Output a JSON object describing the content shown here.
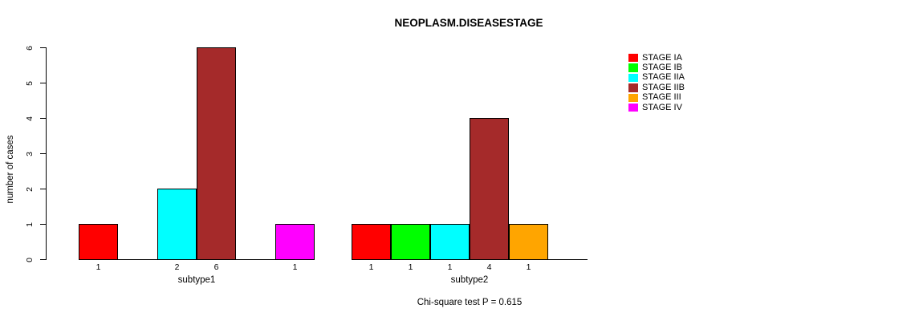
{
  "chart_data": {
    "type": "bar",
    "title": "NEOPLASM.DISEASESTAGE",
    "ylabel": "number of cases",
    "xlabel": "",
    "ylim": [
      0,
      6
    ],
    "yticks": [
      0,
      1,
      2,
      3,
      4,
      5,
      6
    ],
    "categories": [
      "subtype1",
      "subtype2"
    ],
    "series": [
      {
        "name": "STAGE IA",
        "color": "#FF0000",
        "values": [
          1,
          1
        ]
      },
      {
        "name": "STAGE IB",
        "color": "#00FF00",
        "values": [
          0,
          1
        ]
      },
      {
        "name": "STAGE IIA",
        "color": "#00FFFF",
        "values": [
          2,
          1
        ]
      },
      {
        "name": "STAGE IIB",
        "color": "#A52A2A",
        "values": [
          6,
          4
        ]
      },
      {
        "name": "STAGE III",
        "color": "#FFA500",
        "values": [
          0,
          1
        ]
      },
      {
        "name": "STAGE IV",
        "color": "#FF00FF",
        "values": [
          1,
          0
        ]
      }
    ],
    "bar_labels_shown": true,
    "zero_bars_hidden": true,
    "grid": false,
    "legend_position": "top-right",
    "annotation": "Chi-square test P = 0.615",
    "axis_color": "#000000",
    "bar_border_color": "#000000",
    "background_color": "#FFFFFF"
  }
}
